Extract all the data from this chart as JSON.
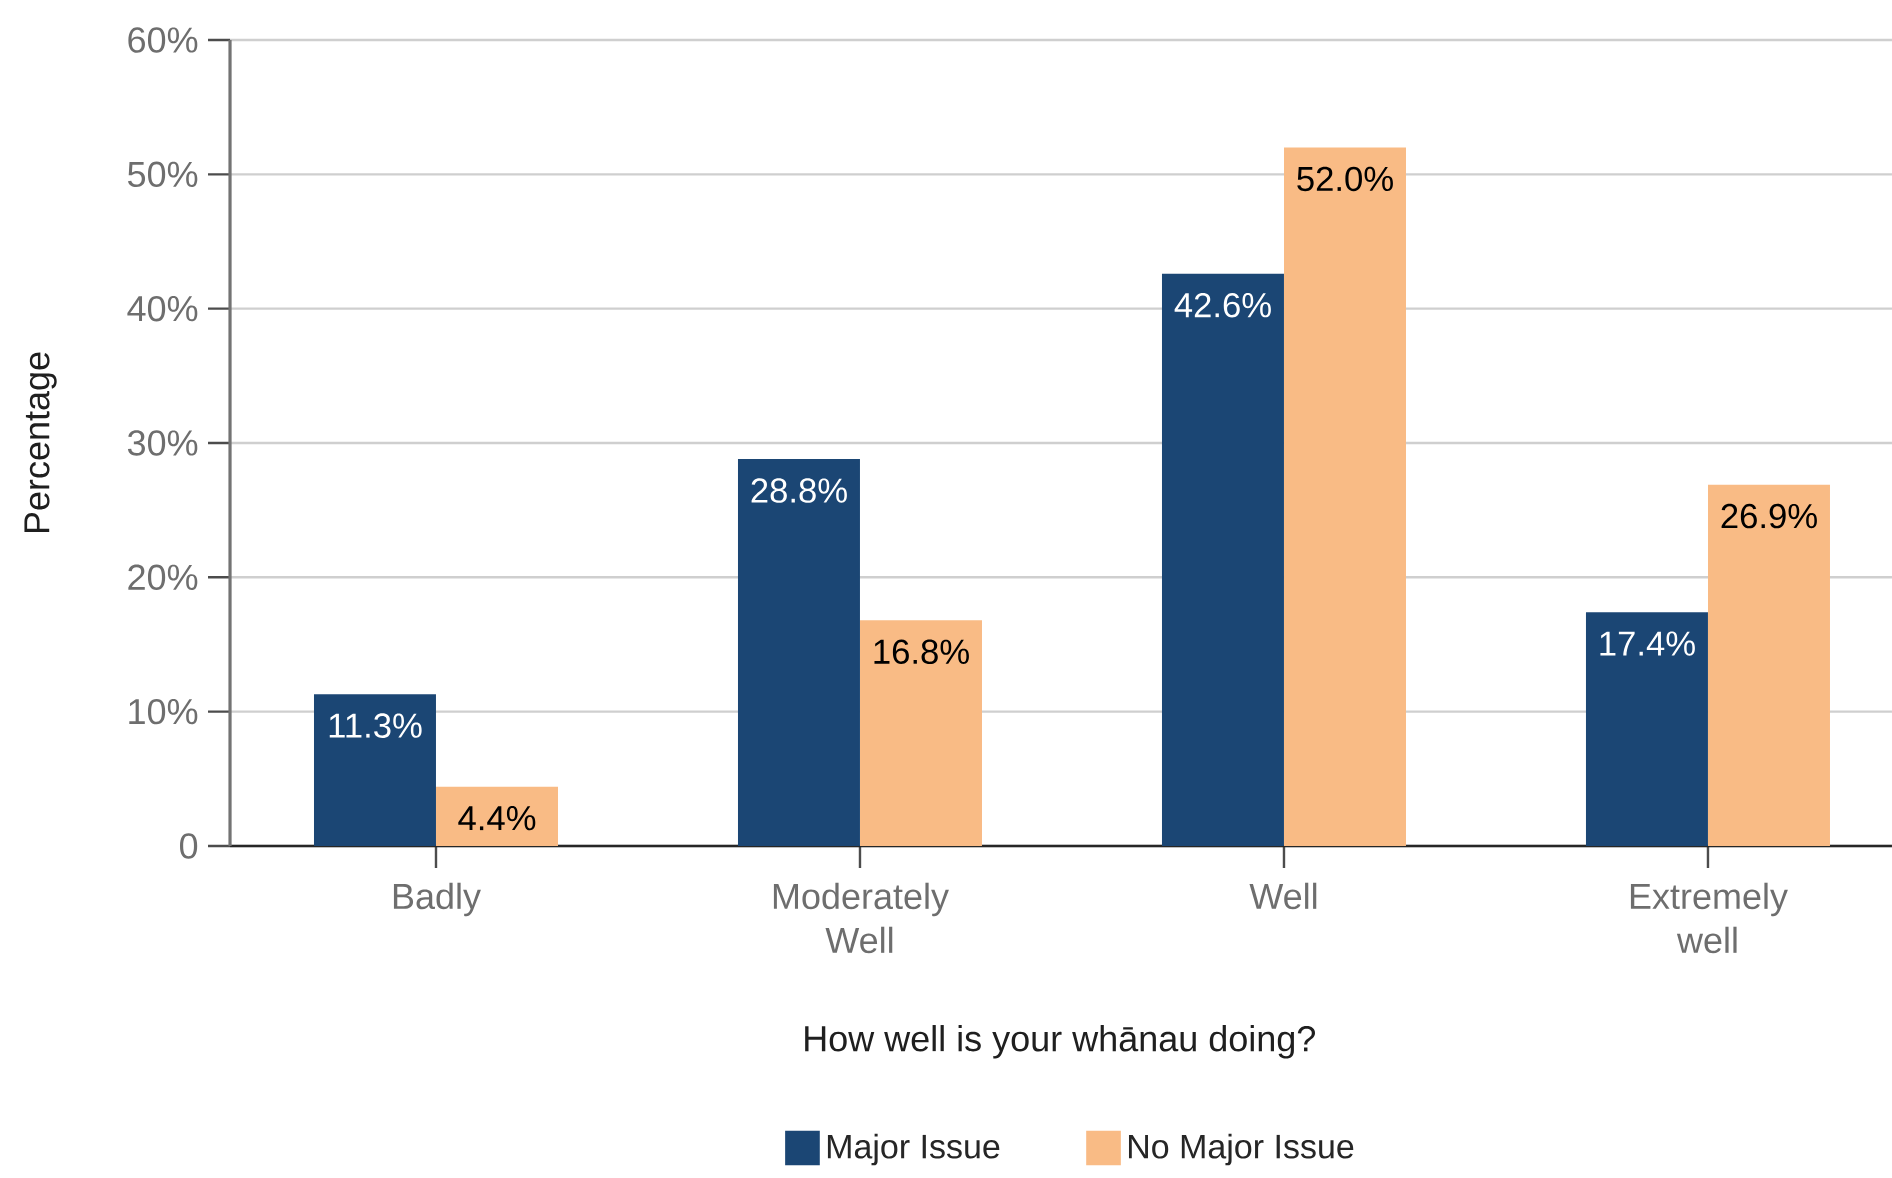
{
  "chart_data": {
    "type": "bar",
    "xlabel": "How well is your whānau doing?",
    "ylabel": "Percentage",
    "categories": [
      "Badly",
      "Moderately Well",
      "Well",
      "Extremely well"
    ],
    "series": [
      {
        "name": "Major Issue",
        "color": "#1b4674",
        "values": [
          11.3,
          28.8,
          42.6,
          17.4
        ],
        "value_labels": [
          "11.3%",
          "28.8%",
          "42.6%",
          "17.4%"
        ]
      },
      {
        "name": "No Major Issue",
        "color": "#f9bb85",
        "values": [
          4.4,
          16.8,
          52.0,
          26.9
        ],
        "value_labels": [
          "4.4%",
          "16.8%",
          "52.0%",
          "26.9%"
        ]
      }
    ],
    "ylim": [
      0,
      60
    ],
    "yticks": [
      0,
      {
        "value": 10,
        "label": "10%"
      },
      {
        "value": 20,
        "label": "20%"
      },
      {
        "value": 30,
        "label": "30%"
      },
      {
        "value": 40,
        "label": "40%"
      },
      {
        "value": 50,
        "label": "50%"
      },
      {
        "value": 60,
        "label": "60%"
      }
    ],
    "grid": "y",
    "legend": "bottom"
  }
}
